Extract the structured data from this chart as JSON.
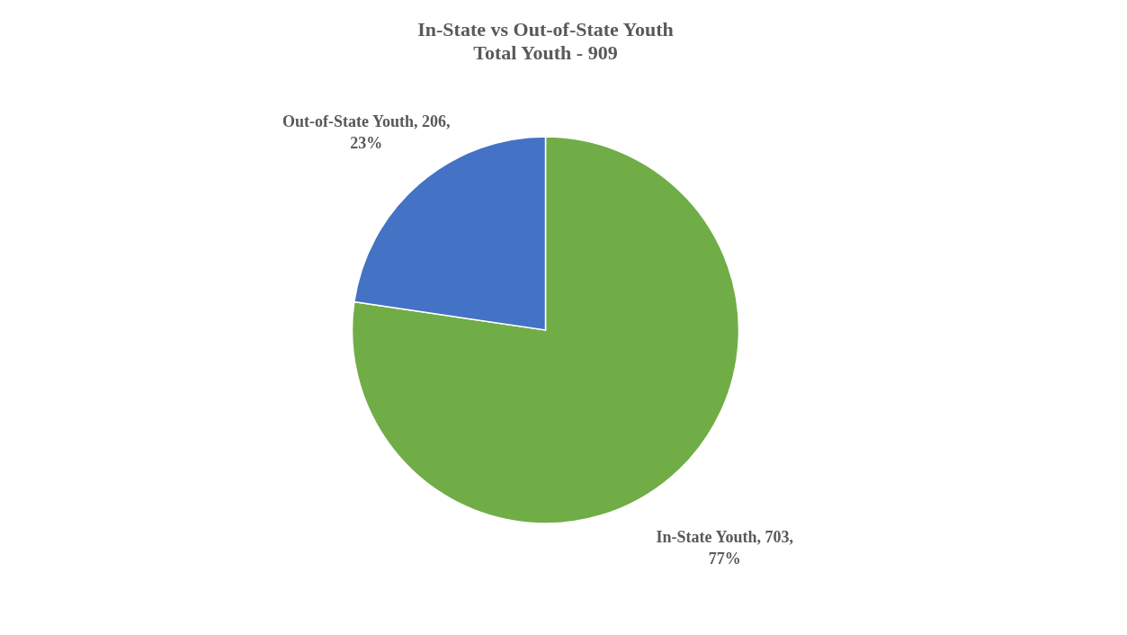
{
  "chart_data": {
    "type": "pie",
    "title": "In-State vs Out-of-State Youth",
    "subtitle": "Total Youth - 909",
    "categories": [
      "In-State Youth",
      "Out-of-State Youth"
    ],
    "values": [
      703,
      206
    ],
    "colors": [
      "#70ad47",
      "#4472c4"
    ],
    "value_labels": [
      "703, 77%",
      "206, 23%"
    ]
  }
}
